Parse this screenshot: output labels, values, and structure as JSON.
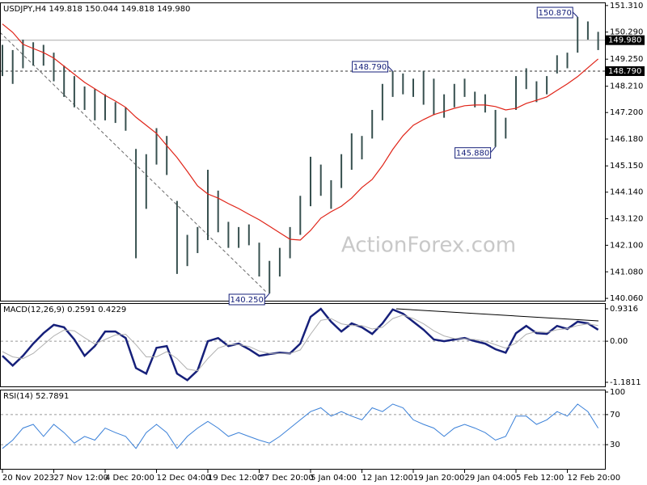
{
  "chart_data": [
    {
      "type": "ohlc",
      "title": "USDJPY,H4  149.818 150.044 149.818 149.980",
      "watermark": "ActionForex.com",
      "categories": [
        "20 Nov 2023",
        null,
        null,
        null,
        null,
        "27 Nov 12:00",
        null,
        null,
        null,
        null,
        "4 Dec 20:00",
        null,
        null,
        null,
        null,
        "12 Dec 04:00",
        null,
        null,
        null,
        null,
        "19 Dec 12:00",
        null,
        null,
        null,
        null,
        "27 Dec 20:00",
        null,
        null,
        null,
        null,
        "5 Jan 04:00",
        null,
        null,
        null,
        null,
        "12 Jan 12:00",
        null,
        null,
        null,
        null,
        "19 Jan 20:00",
        null,
        null,
        null,
        null,
        "29 Jan 04:00",
        null,
        null,
        null,
        null,
        "5 Feb 12:00",
        null,
        null,
        null,
        null,
        "12 Feb 20:00",
        null,
        null,
        null
      ],
      "high": [
        149.8,
        149.6,
        150.0,
        149.9,
        149.8,
        149.5,
        149.0,
        148.6,
        148.2,
        148.1,
        147.9,
        147.6,
        147.4,
        145.8,
        145.6,
        146.6,
        146.3,
        143.8,
        142.5,
        142.8,
        145.0,
        144.2,
        143.0,
        142.8,
        142.9,
        142.2,
        141.5,
        142.0,
        142.8,
        144.0,
        145.5,
        145.2,
        144.6,
        145.6,
        146.4,
        146.3,
        147.3,
        148.3,
        148.79,
        148.7,
        148.5,
        148.8,
        148.5,
        147.9,
        148.3,
        148.5,
        148.0,
        147.9,
        147.3,
        147.0,
        148.6,
        148.9,
        148.4,
        148.6,
        149.4,
        149.5,
        150.87,
        150.7,
        150.3
      ],
      "low": [
        148.6,
        148.3,
        148.9,
        149.0,
        149.0,
        148.4,
        147.8,
        147.4,
        147.3,
        146.9,
        146.9,
        146.8,
        146.5,
        141.6,
        143.5,
        145.2,
        144.8,
        141.0,
        141.3,
        141.8,
        142.3,
        142.6,
        142.0,
        142.0,
        142.1,
        140.9,
        140.25,
        140.9,
        141.6,
        142.5,
        143.6,
        144.0,
        143.5,
        144.3,
        145.0,
        145.4,
        146.2,
        146.9,
        147.8,
        147.9,
        147.8,
        147.5,
        147.1,
        147.0,
        147.4,
        147.8,
        147.4,
        147.2,
        145.88,
        146.2,
        147.3,
        148.1,
        147.6,
        147.9,
        148.7,
        148.9,
        149.5,
        150.0,
        149.6
      ],
      "bar_color": "#37504f",
      "moving_average": {
        "color": "#e02418",
        "values": [
          150.6,
          150.28,
          149.82,
          149.66,
          149.5,
          149.29,
          148.98,
          148.67,
          148.36,
          148.11,
          147.86,
          147.64,
          147.4,
          147.02,
          146.71,
          146.4,
          145.93,
          145.47,
          144.94,
          144.38,
          144.07,
          143.91,
          143.7,
          143.51,
          143.29,
          143.08,
          142.83,
          142.58,
          142.33,
          142.3,
          142.67,
          143.14,
          143.39,
          143.6,
          143.91,
          144.32,
          144.63,
          145.16,
          145.78,
          146.31,
          146.71,
          146.93,
          147.12,
          147.24,
          147.36,
          147.46,
          147.49,
          147.49,
          147.43,
          147.3,
          147.36,
          147.55,
          147.67,
          147.8,
          148.05,
          148.3,
          148.58,
          148.92,
          149.26
        ]
      },
      "annotations": [
        {
          "label": "150.870",
          "value": 150.87
        },
        {
          "label": "148.790",
          "value": 148.79
        },
        {
          "label": "145.880",
          "value": 145.88
        },
        {
          "label": "140.250",
          "value": 140.25
        }
      ],
      "price_levels": [
        {
          "value": 149.98,
          "label": "149.980",
          "style": "solid"
        },
        {
          "value": 148.79,
          "label": "148.790",
          "style": "dashed"
        }
      ],
      "ylim": [
        139.97,
        151.43
      ],
      "yticks": [
        {
          "value": 151.31,
          "label": "151.310"
        },
        {
          "value": 150.29,
          "label": "150.290"
        },
        {
          "value": 149.25,
          "label": "149.250"
        },
        {
          "value": 148.21,
          "label": "148.210"
        },
        {
          "value": 147.2,
          "label": "147.200"
        },
        {
          "value": 146.18,
          "label": "146.180"
        },
        {
          "value": 145.15,
          "label": "145.150"
        },
        {
          "value": 144.14,
          "label": "144.140"
        },
        {
          "value": 143.12,
          "label": "143.120"
        },
        {
          "value": 142.1,
          "label": "142.100"
        },
        {
          "value": 141.08,
          "label": "141.080"
        },
        {
          "value": 140.06,
          "label": "140.060"
        }
      ]
    },
    {
      "type": "line",
      "title": "MACD(12,26,9) 0.2591 0.4229",
      "series": [
        {
          "color": "#16207a",
          "width": 2.5,
          "values": [
            -0.42,
            -0.7,
            -0.42,
            -0.07,
            0.23,
            0.47,
            0.4,
            0.05,
            -0.42,
            -0.14,
            0.28,
            0.28,
            0.09,
            -0.77,
            -0.93,
            -0.19,
            -0.14,
            -0.93,
            -1.12,
            -0.84,
            0.0,
            0.09,
            -0.14,
            -0.07,
            -0.23,
            -0.42,
            -0.37,
            -0.33,
            -0.35,
            -0.07,
            0.7,
            0.93,
            0.56,
            0.28,
            0.51,
            0.4,
            0.21,
            0.51,
            0.91,
            0.79,
            0.56,
            0.33,
            0.05,
            0.0,
            0.05,
            0.09,
            0.0,
            -0.07,
            -0.23,
            -0.33,
            0.23,
            0.44,
            0.23,
            0.21,
            0.44,
            0.35,
            0.56,
            0.51,
            0.33
          ]
        },
        {
          "color": "#b0b0b0",
          "width": 1,
          "values": [
            -0.3,
            -0.45,
            -0.5,
            -0.35,
            -0.1,
            0.15,
            0.32,
            0.3,
            0.1,
            -0.08,
            0.05,
            0.18,
            0.2,
            -0.1,
            -0.45,
            -0.45,
            -0.3,
            -0.5,
            -0.8,
            -0.85,
            -0.5,
            -0.2,
            -0.1,
            -0.1,
            -0.15,
            -0.28,
            -0.35,
            -0.35,
            -0.35,
            -0.25,
            0.2,
            0.6,
            0.65,
            0.5,
            0.45,
            0.45,
            0.35,
            0.4,
            0.65,
            0.75,
            0.65,
            0.5,
            0.3,
            0.15,
            0.08,
            0.07,
            0.05,
            0.0,
            -0.1,
            -0.2,
            -0.05,
            0.2,
            0.28,
            0.25,
            0.33,
            0.36,
            0.45,
            0.5,
            0.45
          ]
        }
      ],
      "ylim": [
        -1.298,
        1.094
      ],
      "yticks": [
        0.9316,
        {
          "value": 0,
          "label": "0.00"
        },
        -1.1811
      ]
    },
    {
      "type": "line",
      "title": "RSI(14) 52.7891",
      "series": [
        {
          "color": "#3a80d8",
          "width": 1,
          "values": [
            25,
            36,
            52,
            57,
            41,
            57,
            46,
            32,
            41,
            36,
            52,
            46,
            41,
            25,
            46,
            57,
            46,
            25,
            41,
            52,
            61,
            52,
            41,
            46,
            41,
            36,
            32,
            41,
            52,
            63,
            74,
            79,
            68,
            74,
            68,
            63,
            79,
            74,
            84,
            79,
            63,
            57,
            52,
            41,
            52,
            57,
            52,
            46,
            36,
            41,
            68,
            68,
            57,
            63,
            74,
            68,
            84,
            74,
            52
          ]
        }
      ],
      "ylim": [
        0,
        100
      ],
      "yticks": [
        100,
        70,
        30
      ]
    }
  ]
}
